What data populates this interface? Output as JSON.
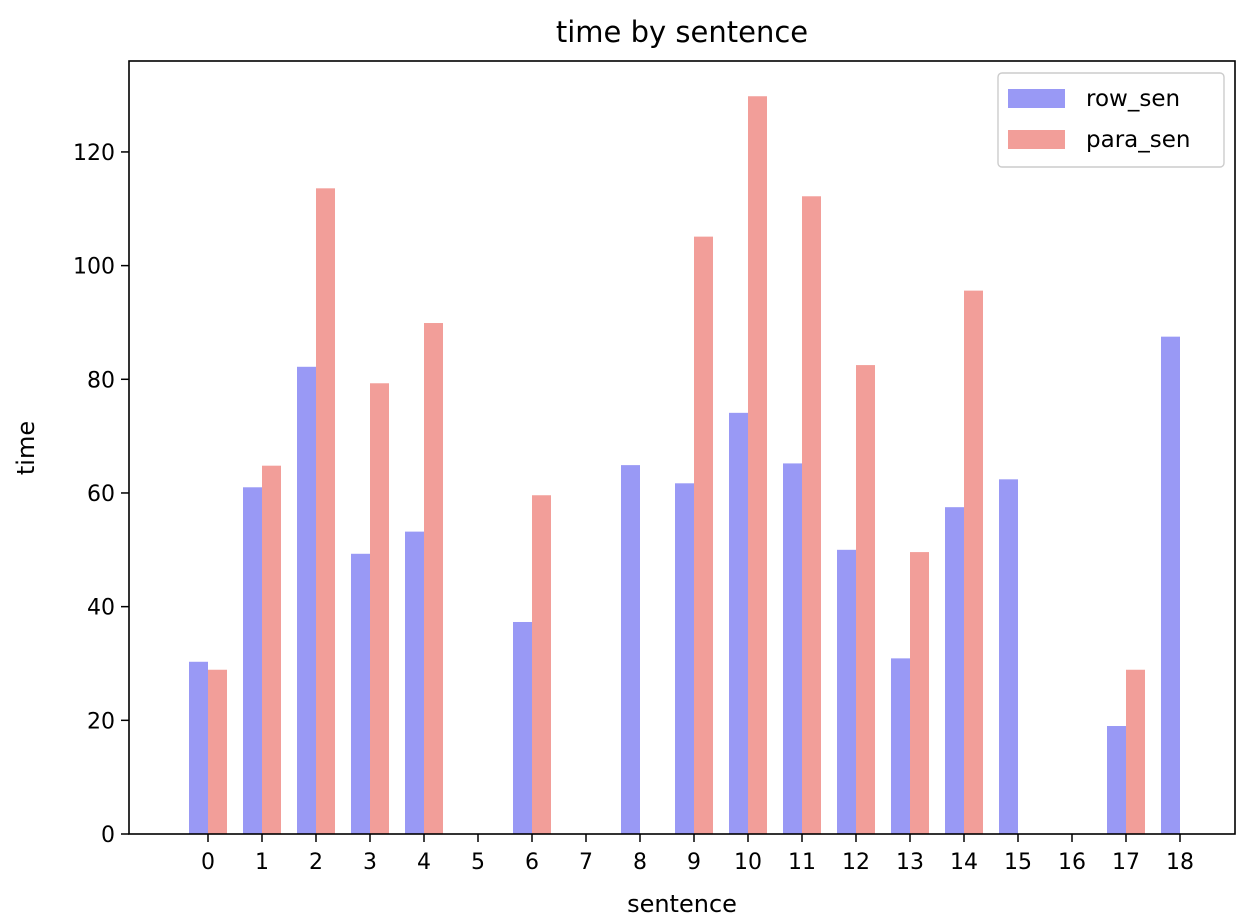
{
  "chart_data": {
    "type": "bar",
    "title": "time by sentence",
    "xlabel": "sentence",
    "ylabel": "time",
    "categories": [
      "0",
      "1",
      "2",
      "3",
      "4",
      "5",
      "6",
      "7",
      "8",
      "9",
      "10",
      "11",
      "12",
      "13",
      "14",
      "15",
      "16",
      "17",
      "18"
    ],
    "series": [
      {
        "name": "row_sen",
        "color": "#9999f5",
        "values": [
          30.3,
          61.0,
          82.2,
          49.3,
          53.2,
          0,
          37.3,
          0,
          64.9,
          61.7,
          74.1,
          65.2,
          50.0,
          30.9,
          57.5,
          62.4,
          0,
          19.0,
          87.5
        ]
      },
      {
        "name": "para_sen",
        "color": "#f29e99",
        "values": [
          28.9,
          64.8,
          113.6,
          79.3,
          89.9,
          0,
          59.6,
          0,
          0,
          105.1,
          129.8,
          112.2,
          82.5,
          49.6,
          95.6,
          0,
          0,
          28.9,
          0
        ]
      }
    ],
    "ylim": [
      0,
      136
    ],
    "yticks": [
      0,
      20,
      40,
      60,
      80,
      100,
      120
    ],
    "legend": "top-right",
    "grid": false
  }
}
